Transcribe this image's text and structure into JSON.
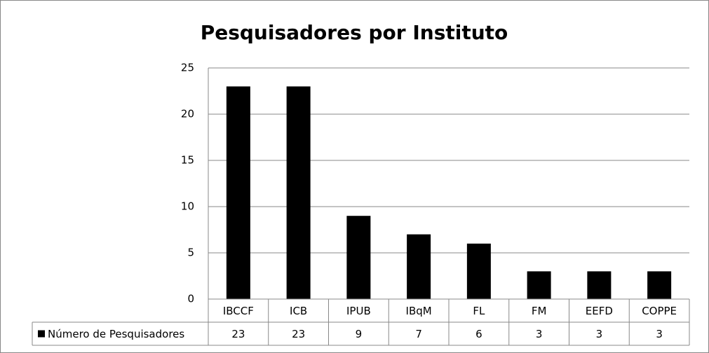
{
  "chart_data": {
    "type": "bar",
    "title": "Pesquisadores por Instituto",
    "categories": [
      "IBCCF",
      "ICB",
      "IPUB",
      "IBqM",
      "FL",
      "FM",
      "EEFD",
      "COPPE"
    ],
    "series": [
      {
        "name": "Número de Pesquisadores",
        "color": "#000000",
        "values": [
          23,
          23,
          9,
          7,
          6,
          3,
          3,
          3
        ]
      }
    ],
    "ylim": [
      0,
      25
    ],
    "yticks": [
      0,
      5,
      10,
      15,
      20,
      25
    ],
    "grid": true,
    "data_table": true
  }
}
